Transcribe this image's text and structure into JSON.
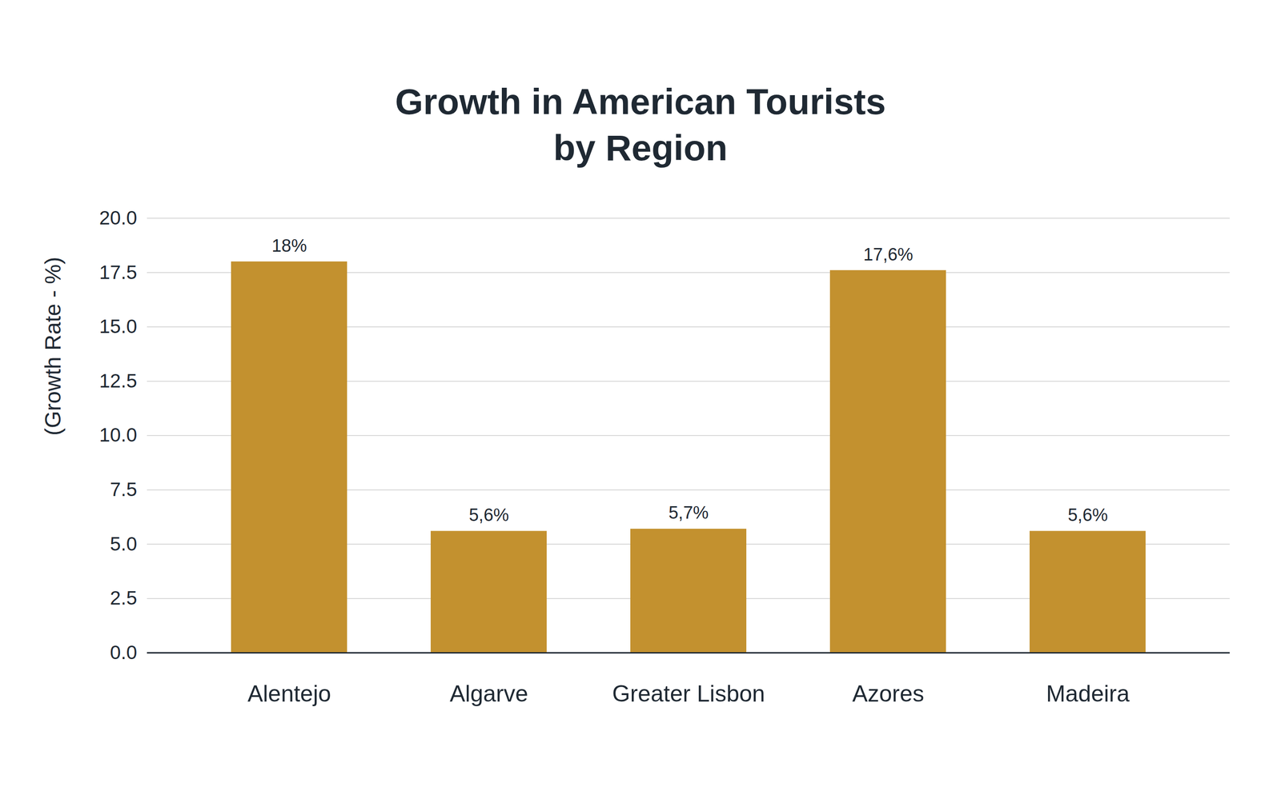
{
  "chart_data": {
    "type": "bar",
    "title": "Growth in American Tourists\nby Region",
    "y_label": "(Growth Rate - %)",
    "categories": [
      "Alentejo",
      "Algarve",
      "Greater Lisbon",
      "Azores",
      "Madeira"
    ],
    "values": [
      18,
      5.6,
      5.7,
      17.6,
      5.6
    ],
    "value_labels": [
      "18%",
      "5,6%",
      "5,7%",
      "17,6%",
      "5,6%"
    ],
    "color": "#c3912f",
    "ylim": [
      0,
      20
    ],
    "yticks": [
      {
        "value": 0,
        "label": "0.0"
      },
      2.5,
      {
        "value": 5,
        "label": "5.0"
      },
      7.5,
      {
        "value": 10,
        "label": "10.0"
      },
      12.5,
      {
        "value": 15,
        "label": "15.0"
      },
      17.5,
      {
        "value": 20,
        "label": "20.0"
      }
    ],
    "grid": true,
    "data_labels": true
  }
}
